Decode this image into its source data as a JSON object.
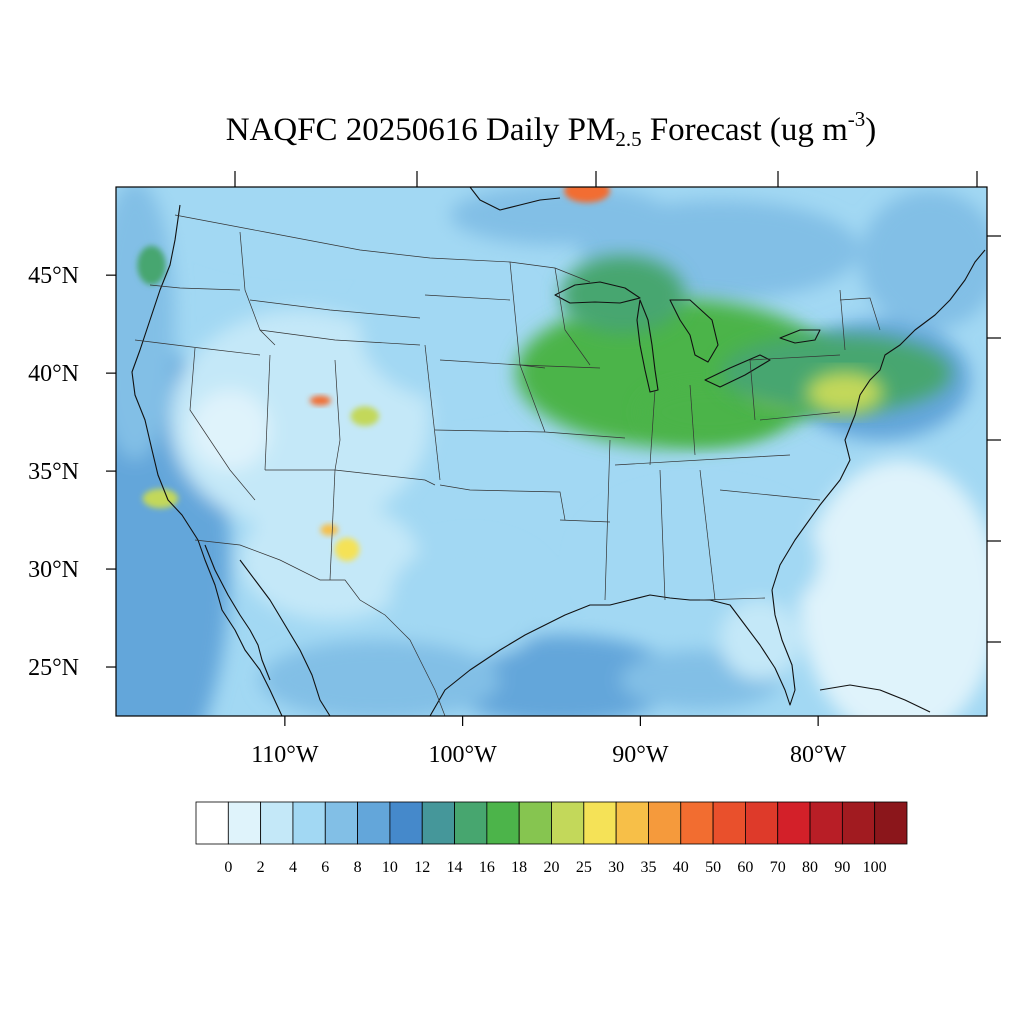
{
  "title": {
    "prefix": "NAQFC 20250616 Daily PM",
    "sub": "2.5",
    "middle": " Forecast (ug m",
    "sup": "-3",
    "suffix": ")"
  },
  "lat_labels": [
    "45°N",
    "40°N",
    "35°N",
    "30°N",
    "25°N"
  ],
  "lon_labels": [
    "110°W",
    "100°W",
    "90°W",
    "80°W"
  ],
  "colorbar": {
    "labels": [
      "0",
      "2",
      "4",
      "6",
      "8",
      "10",
      "12",
      "14",
      "16",
      "18",
      "20",
      "25",
      "30",
      "35",
      "40",
      "50",
      "60",
      "70",
      "80",
      "90",
      "100"
    ],
    "colors": [
      "#ffffff",
      "#dff3fb",
      "#c4e8f8",
      "#a2d8f3",
      "#82bfe6",
      "#63a6da",
      "#4589cb",
      "#45979a",
      "#47a66f",
      "#4cb44a",
      "#86c550",
      "#c3d85a",
      "#f5e257",
      "#f7bf48",
      "#f59a3c",
      "#f26d30",
      "#e9502c",
      "#de3a2a",
      "#d32029",
      "#b81e26",
      "#a11b20",
      "#8b161b"
    ]
  },
  "chart_data": {
    "type": "heatmap",
    "title": "NAQFC 20250616 Daily PM2.5 Forecast (ug m-3)",
    "variable": "PM2.5 daily forecast",
    "units": "ug m-3",
    "lat_range": [
      22.5,
      49.5
    ],
    "lon_range": [
      -119.5,
      -70.5
    ],
    "levels": [
      0,
      2,
      4,
      6,
      8,
      10,
      12,
      14,
      16,
      18,
      20,
      25,
      30,
      35,
      40,
      50,
      60,
      70,
      80,
      90,
      100
    ],
    "background_level": [
      4,
      10
    ],
    "regions": [
      {
        "lon": -90.5,
        "lat": 39.5,
        "rx": 3.0,
        "ry": 2.0,
        "value": 23
      },
      {
        "lon": -88.0,
        "lat": 40.0,
        "rx": 9.0,
        "ry": 3.8,
        "value": 17
      },
      {
        "lon": -86.0,
        "lat": 38.0,
        "rx": 4.0,
        "ry": 1.5,
        "value": 16
      },
      {
        "lon": -82.0,
        "lat": 39.5,
        "rx": 2.0,
        "ry": 1.2,
        "value": 19
      },
      {
        "lon": -79.0,
        "lat": 40.0,
        "rx": 6.5,
        "ry": 2.0,
        "value": 15
      },
      {
        "lon": -91.0,
        "lat": 44.0,
        "rx": 3.5,
        "ry": 2.0,
        "value": 15
      },
      {
        "lon": -78.5,
        "lat": 39.0,
        "rx": 2.2,
        "ry": 1.1,
        "value": 20
      },
      {
        "lon": -93.0,
        "lat": 49.3,
        "rx": 1.3,
        "ry": 0.6,
        "value": 45
      },
      {
        "lon": -117.0,
        "lat": 33.6,
        "rx": 1.0,
        "ry": 0.5,
        "value": 22
      },
      {
        "lon": -106.5,
        "lat": 31.0,
        "rx": 0.7,
        "ry": 0.6,
        "value": 25
      },
      {
        "lon": -107.5,
        "lat": 32.0,
        "rx": 0.5,
        "ry": 0.3,
        "value": 30
      },
      {
        "lon": -105.5,
        "lat": 37.8,
        "rx": 0.8,
        "ry": 0.5,
        "value": 20
      },
      {
        "lon": -108.0,
        "lat": 38.6,
        "rx": 0.6,
        "ry": 0.25,
        "value": 40
      },
      {
        "lon": -117.5,
        "lat": 45.5,
        "rx": 0.8,
        "ry": 1.0,
        "value": 15
      }
    ]
  }
}
